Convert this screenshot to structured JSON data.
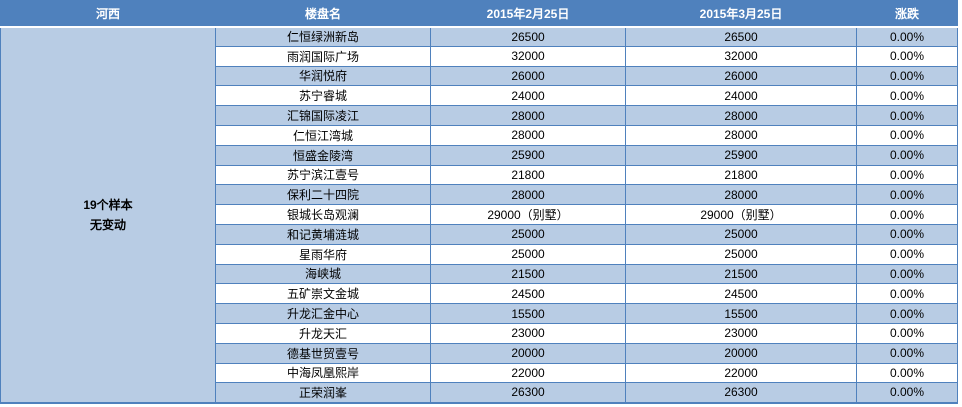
{
  "colors": {
    "header_bg": "#4f81bd",
    "row_alt_bg": "#b8cce4",
    "row_bg": "#ffffff",
    "border": "#4f81bd",
    "header_text": "#ffffff",
    "body_text": "#000000"
  },
  "header": {
    "region_label": "河西",
    "columns": [
      "楼盘名",
      "2015年2月25日",
      "2015年3月25日",
      "涨跌"
    ]
  },
  "region_summary": {
    "line1": "19个样本",
    "line2": "无变动"
  },
  "chart_data": {
    "type": "table",
    "columns": [
      "河西",
      "楼盘名",
      "2015年2月25日",
      "2015年3月25日",
      "涨跌"
    ],
    "region": "河西",
    "sample_count": 19,
    "summary": "19个样本 无变动",
    "rows": [
      {
        "name": "仁恒绿洲新岛",
        "feb": "26500",
        "mar": "26500",
        "change": "0.00%"
      },
      {
        "name": "雨润国际广场",
        "feb": "32000",
        "mar": "32000",
        "change": "0.00%"
      },
      {
        "name": "华润悦府",
        "feb": "26000",
        "mar": "26000",
        "change": "0.00%"
      },
      {
        "name": "苏宁睿城",
        "feb": "24000",
        "mar": "24000",
        "change": "0.00%"
      },
      {
        "name": "汇锦国际凌江",
        "feb": "28000",
        "mar": "28000",
        "change": "0.00%"
      },
      {
        "name": "仁恒江湾城",
        "feb": "28000",
        "mar": "28000",
        "change": "0.00%"
      },
      {
        "name": "恒盛金陵湾",
        "feb": "25900",
        "mar": "25900",
        "change": "0.00%"
      },
      {
        "name": "苏宁滨江壹号",
        "feb": "21800",
        "mar": "21800",
        "change": "0.00%"
      },
      {
        "name": "保利二十四院",
        "feb": "28000",
        "mar": "28000",
        "change": "0.00%"
      },
      {
        "name": "银城长岛观澜",
        "feb": "29000（别墅）",
        "mar": "29000（别墅）",
        "change": "0.00%"
      },
      {
        "name": "和记黄埔涟城",
        "feb": "25000",
        "mar": "25000",
        "change": "0.00%"
      },
      {
        "name": "星雨华府",
        "feb": "25000",
        "mar": "25000",
        "change": "0.00%"
      },
      {
        "name": "海峡城",
        "feb": "21500",
        "mar": "21500",
        "change": "0.00%"
      },
      {
        "name": "五矿崇文金城",
        "feb": "24500",
        "mar": "24500",
        "change": "0.00%"
      },
      {
        "name": "升龙汇金中心",
        "feb": "15500",
        "mar": "15500",
        "change": "0.00%"
      },
      {
        "name": "升龙天汇",
        "feb": "23000",
        "mar": "23000",
        "change": "0.00%"
      },
      {
        "name": "德基世贸壹号",
        "feb": "20000",
        "mar": "20000",
        "change": "0.00%"
      },
      {
        "name": "中海凤凰熙岸",
        "feb": "22000",
        "mar": "22000",
        "change": "0.00%"
      },
      {
        "name": "正荣润峯",
        "feb": "26300",
        "mar": "26300",
        "change": "0.00%"
      }
    ]
  }
}
